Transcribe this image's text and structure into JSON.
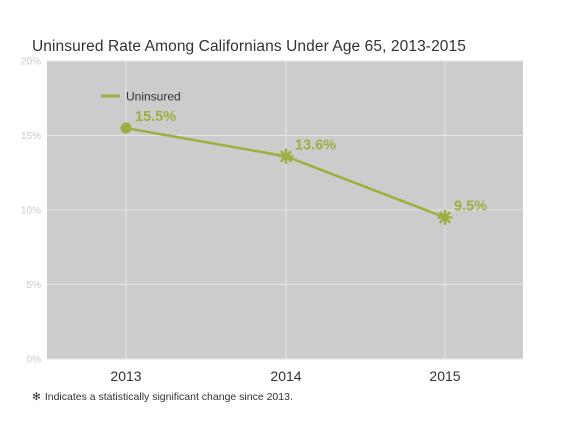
{
  "chart_data": {
    "type": "line",
    "title": "Uninsured Rate Among Californians Under Age 65, 2013-2015",
    "categories": [
      "2013",
      "2014",
      "2015"
    ],
    "series": [
      {
        "name": "Uninsured",
        "values": [
          15.5,
          13.6,
          9.5
        ],
        "labels": [
          "15.5%",
          "13.6%",
          "9.5%"
        ],
        "markers": [
          "circle",
          "asterisk",
          "asterisk"
        ]
      }
    ],
    "yticks": [
      "0%",
      "5%",
      "10%",
      "15%",
      "20%"
    ],
    "ylim": [
      0,
      20
    ],
    "grid": true,
    "legend": "top-left",
    "footnote": "Indicates a statistically significant change since 2013.",
    "footnote_symbol": "✻"
  },
  "colors": {
    "series": "#9bb03f",
    "plot_bg": "#cccccc",
    "grid": "#e4e4e4"
  }
}
